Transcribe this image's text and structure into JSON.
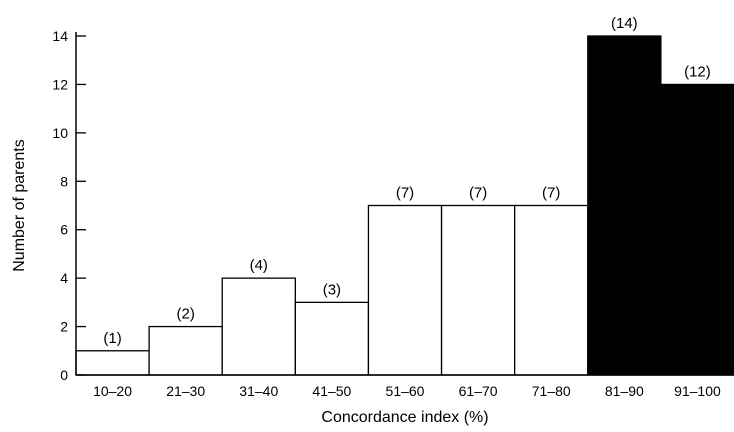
{
  "chart_data": {
    "type": "bar",
    "xlabel": "Concordance index (%)",
    "ylabel": "Number of parents",
    "categories": [
      "10–20",
      "21–30",
      "31–40",
      "41–50",
      "51–60",
      "61–70",
      "71–80",
      "81–90",
      "91–100"
    ],
    "values": [
      1,
      2,
      4,
      3,
      7,
      7,
      7,
      14,
      12
    ],
    "data_labels": [
      "(1)",
      "(2)",
      "(4)",
      "(3)",
      "(7)",
      "(7)",
      "(7)",
      "(14)",
      "(12)"
    ],
    "filled": [
      false,
      false,
      false,
      false,
      false,
      false,
      false,
      true,
      true
    ],
    "ylim": [
      0,
      14
    ],
    "yticks": [
      0,
      2,
      4,
      6,
      8,
      10,
      12,
      14
    ],
    "grid": false,
    "colors": {
      "open_fill": "#ffffff",
      "solid_fill": "#000000",
      "stroke": "#000000"
    }
  }
}
